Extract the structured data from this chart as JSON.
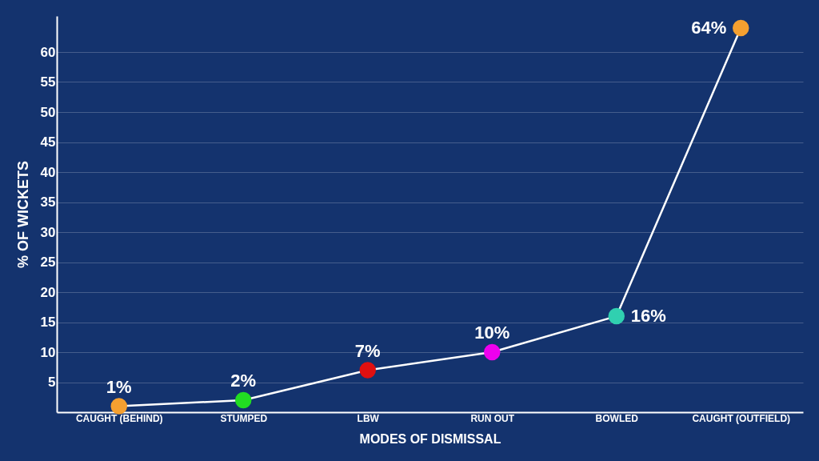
{
  "chart_data": {
    "type": "line",
    "xlabel": "MODES OF DISMISSAL",
    "ylabel": "% OF WICKETS",
    "categories": [
      "CAUGHT (BEHIND)",
      "STUMPED",
      "LBW",
      "RUN OUT",
      "BOWLED",
      "CAUGHT (OUTFIELD)"
    ],
    "series": [
      {
        "color": "#ffffff",
        "values": [
          1,
          2,
          7,
          10,
          16,
          64
        ],
        "colors": [
          "#f5a030",
          "#22dd22",
          "#e01010",
          "#ee00ee",
          "#30d0b0",
          "#f5a030"
        ],
        "value_labels": [
          "1%",
          "2%",
          "7%",
          "10%",
          "16%",
          "64%"
        ]
      }
    ],
    "ylim": [
      0,
      66
    ],
    "yticks": [
      5,
      10,
      15,
      20,
      25,
      30,
      35,
      40,
      45,
      50,
      55,
      60
    ],
    "grid": "y",
    "marker": "circle",
    "line_style": "solid"
  }
}
